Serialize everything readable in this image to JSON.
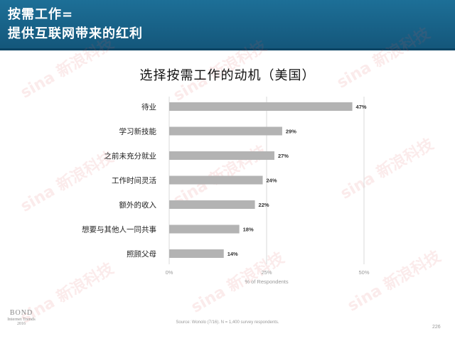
{
  "header": {
    "line1": "按需工作=",
    "line2": "提供互联网带来的红利"
  },
  "watermark": "sina 新浪科技",
  "chart_data": {
    "type": "bar",
    "orientation": "horizontal",
    "title": "选择按需工作的动机（美国）",
    "xlabel": "% of Respondents",
    "ylabel": "",
    "categories": [
      "待业",
      "学习新技能",
      "之前未充分就业",
      "工作时间灵活",
      "额外的收入",
      "想要与其他人一同共事",
      "照顾父母"
    ],
    "values": [
      47,
      29,
      27,
      24,
      22,
      18,
      14
    ],
    "value_labels": [
      "47%",
      "29%",
      "27%",
      "24%",
      "22%",
      "18%",
      "14%"
    ],
    "xlim": [
      0,
      50
    ],
    "x_ticks": [
      0,
      25,
      50
    ],
    "x_tick_labels": [
      "0%",
      "25%",
      "50%"
    ],
    "grid": "vertical",
    "bar_color": "#b3b3b3",
    "grid_color": "#d9d9d9"
  },
  "footer": {
    "logo_line1": "BOND",
    "logo_line2": "Internet Trends",
    "logo_line3": "2016",
    "source": "Source: Wonolo (7/16). N = 1,400 survey respondents.",
    "page_number": "226"
  }
}
